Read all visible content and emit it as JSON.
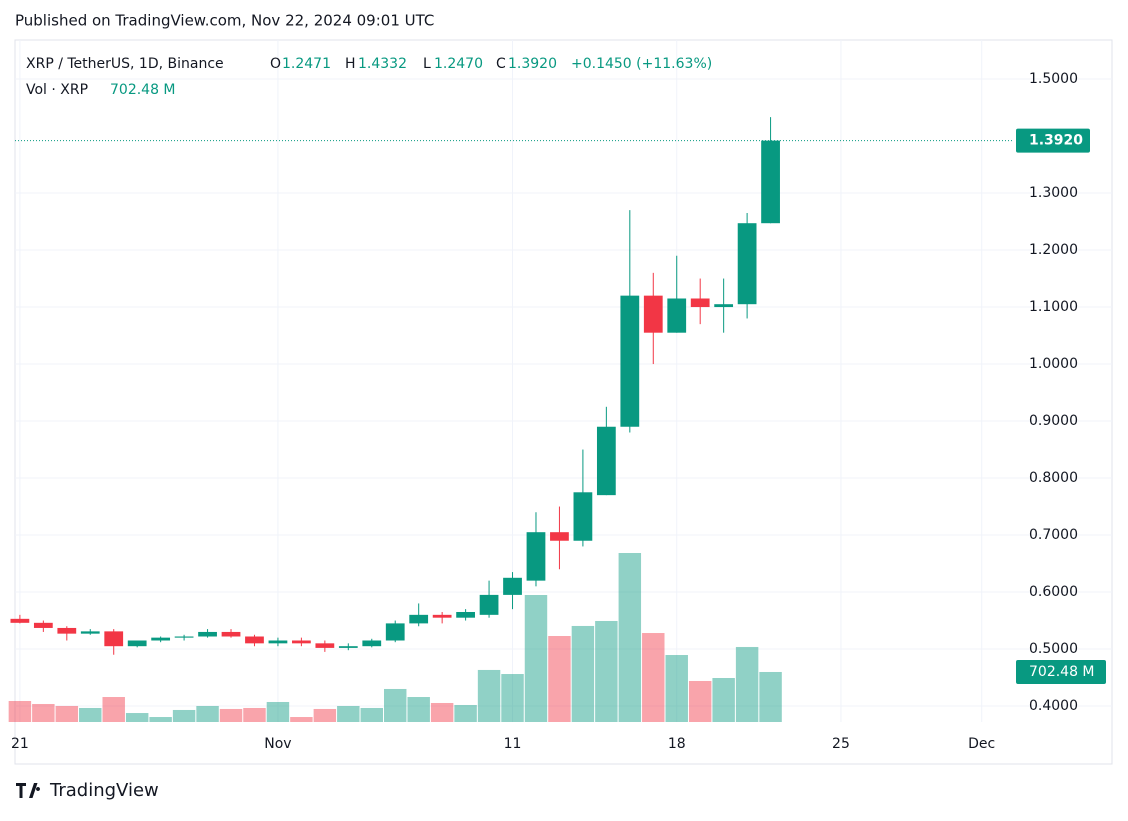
{
  "chart_data": {
    "type": "candlestick",
    "header": "Published on TradingView.com, Nov 22, 2024 09:01 UTC",
    "title": "XRP / TetherUS, 1D, Binance",
    "legend": {
      "o": "O",
      "open_value": "1.2471",
      "h": "H",
      "high_value": "1.4332",
      "l": "L",
      "low_value": "1.2470",
      "c": "C",
      "close_value": "1.3920",
      "change": "+0.1450 (+11.63%)"
    },
    "volume_title": "Vol · XRP",
    "volume_label": "702.48 M",
    "footer": "TradingView",
    "x": [
      "2024-10-21",
      "2024-10-22",
      "2024-10-23",
      "2024-10-24",
      "2024-10-25",
      "2024-10-26",
      "2024-10-27",
      "2024-10-28",
      "2024-10-29",
      "2024-10-30",
      "2024-10-31",
      "2024-11-01",
      "2024-11-02",
      "2024-11-03",
      "2024-11-04",
      "2024-11-05",
      "2024-11-06",
      "2024-11-07",
      "2024-11-08",
      "2024-11-09",
      "2024-11-10",
      "2024-11-11",
      "2024-11-12",
      "2024-11-13",
      "2024-11-14",
      "2024-11-15",
      "2024-11-16",
      "2024-11-17",
      "2024-11-18",
      "2024-11-19",
      "2024-11-20",
      "2024-11-21",
      "2024-11-22"
    ],
    "open": [
      0.553,
      0.546,
      0.537,
      0.527,
      0.531,
      0.505,
      0.515,
      0.52,
      0.522,
      0.53,
      0.522,
      0.51,
      0.515,
      0.51,
      0.502,
      0.505,
      0.515,
      0.545,
      0.56,
      0.555,
      0.56,
      0.595,
      0.62,
      0.705,
      0.69,
      0.77,
      0.89,
      1.12,
      1.055,
      1.115,
      1.1,
      1.105,
      1.2471
    ],
    "high": [
      0.56,
      0.55,
      0.54,
      0.535,
      0.535,
      0.515,
      0.522,
      0.525,
      0.535,
      0.535,
      0.525,
      0.52,
      0.52,
      0.515,
      0.51,
      0.518,
      0.55,
      0.58,
      0.565,
      0.57,
      0.62,
      0.635,
      0.74,
      0.75,
      0.85,
      0.925,
      1.27,
      1.16,
      1.19,
      1.15,
      1.15,
      1.265,
      1.4332
    ],
    "low": [
      0.545,
      0.53,
      0.515,
      0.525,
      0.49,
      0.503,
      0.512,
      0.515,
      0.52,
      0.52,
      0.505,
      0.505,
      0.505,
      0.495,
      0.498,
      0.503,
      0.512,
      0.54,
      0.545,
      0.55,
      0.555,
      0.57,
      0.61,
      0.64,
      0.68,
      0.77,
      0.88,
      1.0,
      1.055,
      1.07,
      1.055,
      1.08,
      1.247
    ],
    "close": [
      0.546,
      0.537,
      0.527,
      0.531,
      0.505,
      0.515,
      0.52,
      0.522,
      0.53,
      0.522,
      0.51,
      0.515,
      0.51,
      0.502,
      0.505,
      0.515,
      0.545,
      0.56,
      0.555,
      0.565,
      0.595,
      0.625,
      0.705,
      0.69,
      0.775,
      0.89,
      1.12,
      1.055,
      1.115,
      1.1,
      1.105,
      1.2471,
      1.392
    ],
    "volume": [
      295,
      253,
      225,
      197,
      351,
      126,
      70,
      169,
      225,
      183,
      197,
      281,
      70,
      183,
      225,
      197,
      464,
      351,
      267,
      239,
      731,
      674,
      1784,
      1208,
      1349,
      1419,
      2374,
      1250,
      941,
      576,
      618,
      1054,
      702.48
    ],
    "up_color": "#089981",
    "down_color": "#f23645",
    "xlim": [
      "2024-10-20T19:00",
      "2024-12-02T07:00"
    ],
    "xticks": [
      {
        "value": "2024-10-21",
        "label": "21"
      },
      {
        "value": "2024-11-01",
        "label": "Nov"
      },
      {
        "value": "2024-11-11",
        "label": "11"
      },
      {
        "value": "2024-11-18",
        "label": "18"
      },
      {
        "value": "2024-11-25",
        "label": "25"
      },
      {
        "value": "2024-12-01",
        "label": "Dec"
      }
    ],
    "ylim": [
      0.372,
      1.565
    ],
    "yticks": [
      {
        "value": 0.4,
        "label": "0.4000"
      },
      {
        "value": 0.5,
        "label": "0.5000"
      },
      {
        "value": 0.6,
        "label": "0.6000"
      },
      {
        "value": 0.7,
        "label": "0.7000"
      },
      {
        "value": 0.8,
        "label": "0.8000"
      },
      {
        "value": 0.9,
        "label": "0.9000"
      },
      {
        "value": 1.0,
        "label": "1.0000"
      },
      {
        "value": 1.1,
        "label": "1.1000"
      },
      {
        "value": 1.2,
        "label": "1.2000"
      },
      {
        "value": 1.3,
        "label": "1.3000"
      },
      {
        "value": 1.5,
        "label": "1.5000"
      }
    ],
    "grid": true
  }
}
